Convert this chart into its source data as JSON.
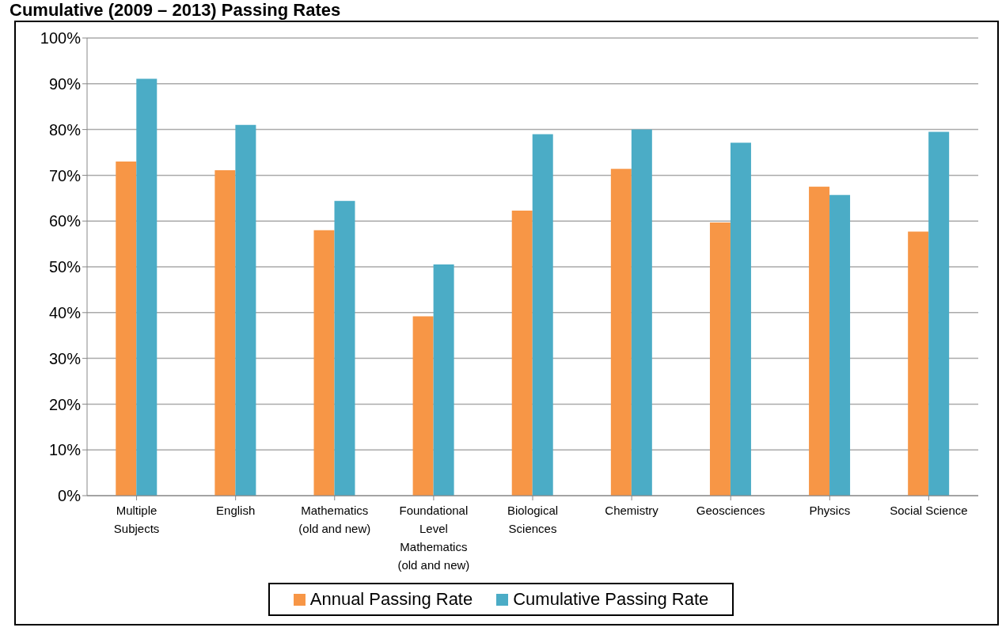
{
  "chart_data": {
    "type": "bar",
    "title": "Cumulative (2009 – 2013) Passing Rates",
    "categories": [
      "Multiple Subjects",
      "English",
      "Mathematics (old and new)",
      "Foundational Level Mathematics (old and new)",
      "Biological Sciences",
      "Chemistry",
      "Geosciences",
      "Physics",
      "Social Science"
    ],
    "series": [
      {
        "name": "Annual Passing Rate",
        "color": "#f79646",
        "values": [
          73,
          71.1,
          58,
          39.2,
          62.3,
          71.4,
          59.7,
          67.5,
          57.7
        ]
      },
      {
        "name": "Cumulative Passing Rate",
        "color": "#4bacc6",
        "values": [
          91.1,
          81,
          64.4,
          50.5,
          79,
          80,
          77.1,
          65.7,
          79.5
        ]
      }
    ],
    "ylim": [
      0,
      100
    ],
    "yticks": [
      {
        "value": 0,
        "label": "0%"
      },
      {
        "value": 10,
        "label": "10%"
      },
      {
        "value": 20,
        "label": "20%"
      },
      {
        "value": 30,
        "label": "30%"
      },
      {
        "value": 40,
        "label": "40%"
      },
      {
        "value": 50,
        "label": "50%"
      },
      {
        "value": 60,
        "label": "60%"
      },
      {
        "value": 70,
        "label": "70%"
      },
      {
        "value": 80,
        "label": "80%"
      },
      {
        "value": 90,
        "label": "90%"
      },
      {
        "value": 100,
        "label": "100%"
      }
    ],
    "grid": "y",
    "legend": "bottom"
  }
}
